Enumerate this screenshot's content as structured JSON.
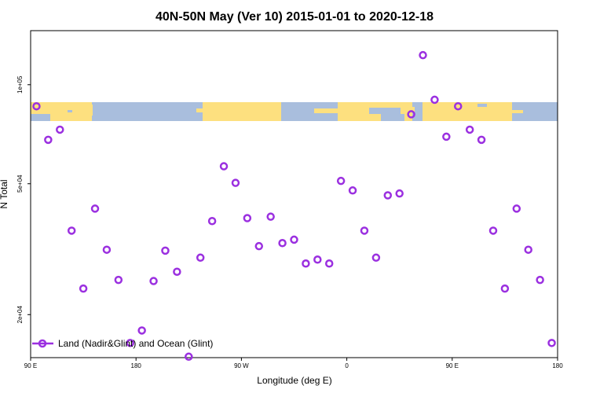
{
  "chart_data": {
    "type": "scatter",
    "title": "40N-50N May (Ver 10)   2015-01-01 to 2020-12-18",
    "xlabel": "Longitude (deg E)",
    "ylabel": "N Total",
    "y_scale": "log",
    "xlim": [
      90,
      540
    ],
    "ylim": [
      14800,
      146000
    ],
    "x_ticks": [
      {
        "value": 90,
        "label": "90 E"
      },
      {
        "value": 180,
        "label": "180"
      },
      {
        "value": 270,
        "label": "90 W"
      },
      {
        "value": 360,
        "label": "0"
      },
      {
        "value": 450,
        "label": "90 E"
      },
      {
        "value": 540,
        "label": "180"
      }
    ],
    "y_ticks": [
      {
        "value": 20000,
        "label": "2e+04"
      },
      {
        "value": 50000,
        "label": "5e+04"
      },
      {
        "value": 100000,
        "label": "1e+05"
      }
    ],
    "legend": {
      "position": "bottom-left",
      "entries": [
        "Land (Nadir&Glint) and Ocean (Glint)"
      ]
    },
    "series": [
      {
        "name": "Land (Nadir&Glint) and Ocean (Glint)",
        "color": "#9b30e0",
        "points": [
          [
            95,
            86000
          ],
          [
            105,
            68000
          ],
          [
            115,
            73000
          ],
          [
            125,
            36000
          ],
          [
            135,
            24000
          ],
          [
            145,
            42000
          ],
          [
            155,
            31500
          ],
          [
            165,
            25500
          ],
          [
            175,
            16400
          ],
          [
            185,
            17900
          ],
          [
            195,
            25300
          ],
          [
            205,
            31300
          ],
          [
            215,
            27000
          ],
          [
            225,
            14900
          ],
          [
            235,
            29800
          ],
          [
            245,
            38500
          ],
          [
            255,
            56500
          ],
          [
            265,
            50300
          ],
          [
            275,
            39300
          ],
          [
            285,
            32300
          ],
          [
            295,
            39700
          ],
          [
            305,
            33000
          ],
          [
            315,
            33800
          ],
          [
            325,
            28600
          ],
          [
            335,
            29400
          ],
          [
            345,
            28600
          ],
          [
            355,
            51000
          ],
          [
            365,
            47700
          ],
          [
            375,
            36000
          ],
          [
            385,
            29800
          ],
          [
            395,
            46100
          ],
          [
            405,
            46700
          ],
          [
            415,
            81300
          ],
          [
            425,
            123000
          ],
          [
            435,
            90000
          ],
          [
            445,
            69500
          ],
          [
            455,
            86000
          ],
          [
            465,
            73000
          ],
          [
            475,
            68000
          ],
          [
            485,
            36000
          ],
          [
            495,
            24000
          ],
          [
            505,
            42000
          ],
          [
            515,
            31500
          ],
          [
            525,
            25500
          ],
          [
            535,
            16400
          ]
        ]
      }
    ]
  },
  "map_strip": {
    "land_color": "#fde07f",
    "ocean_color": "#a9bedd"
  }
}
